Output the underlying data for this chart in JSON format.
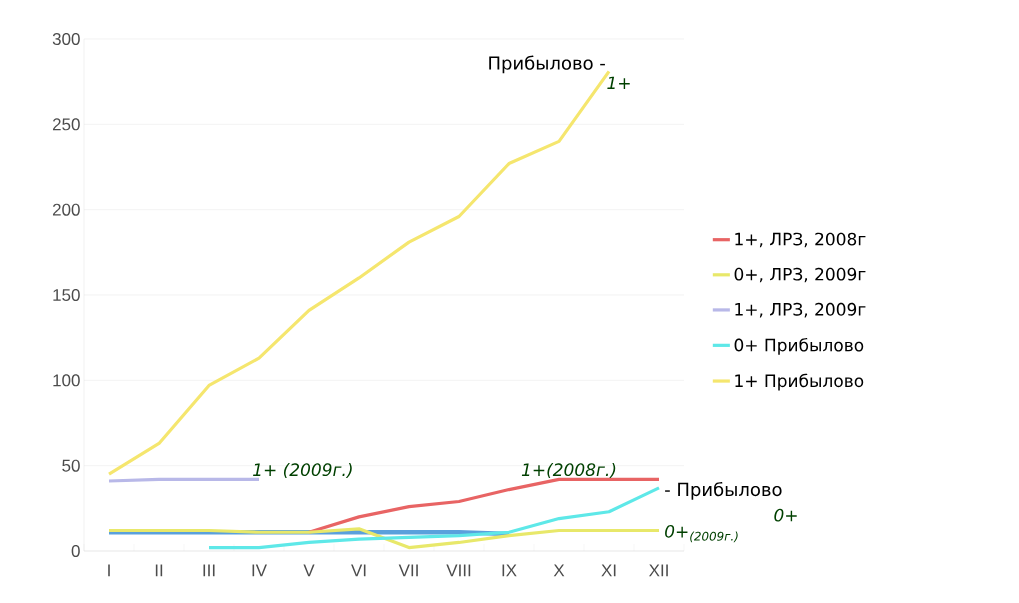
{
  "chart_data": {
    "type": "line",
    "categories": [
      "I",
      "II",
      "III",
      "IV",
      "V",
      "VI",
      "VII",
      "VIII",
      "IX",
      "X",
      "XI",
      "XII"
    ],
    "series": [
      {
        "name": "1+, ЛРЗ, 2008г",
        "color": "#e86464",
        "values": [
          null,
          null,
          null,
          null,
          11,
          20,
          26,
          29,
          36,
          42,
          42,
          42
        ]
      },
      {
        "name": "0+, ЛРЗ, 2009г",
        "color": "#e8e86a",
        "values": [
          12,
          12,
          12,
          11,
          11,
          13,
          2,
          5,
          9,
          12,
          12,
          12
        ]
      },
      {
        "name": "1+, ЛРЗ, 2009г",
        "color": "#b8b8e8",
        "values": [
          41,
          42,
          42,
          42,
          null,
          null,
          null,
          null,
          null,
          null,
          null,
          null
        ]
      },
      {
        "name": "0+ Прибылово",
        "color": "#5ee8e8",
        "values": [
          null,
          null,
          2,
          2,
          5,
          7,
          8,
          9,
          11,
          19,
          23,
          37
        ]
      },
      {
        "name": "1+ Прибылово",
        "color": "#f5e66e",
        "values": [
          45,
          63,
          97,
          113,
          141,
          160,
          181,
          196,
          227,
          240,
          281,
          null
        ]
      },
      {
        "color": "#5aa0dc",
        "values": [
          11,
          11,
          11,
          11,
          11,
          11,
          11,
          11,
          10,
          null,
          null,
          null
        ]
      }
    ],
    "ylim": [
      0,
      300
    ],
    "yticks": [
      0,
      50,
      100,
      150,
      200,
      250,
      300
    ],
    "grid": "y",
    "legend": "right",
    "annotations": [
      {
        "text": "Прибылово -",
        "x": "XI",
        "y": 281
      },
      {
        "text": "1+",
        "x": "XI",
        "y": 281
      },
      {
        "text": "1+ (2009г.)",
        "x": "IV",
        "y": 42
      },
      {
        "text": "1+(2008г.)",
        "x": "X",
        "y": 42
      },
      {
        "text": "- Прибылово",
        "x": "XII",
        "y": 37
      },
      "0+",
      {
        "text": "0+$_{(2009г.)}$",
        "x": "XII",
        "y": 12
      }
    ]
  }
}
